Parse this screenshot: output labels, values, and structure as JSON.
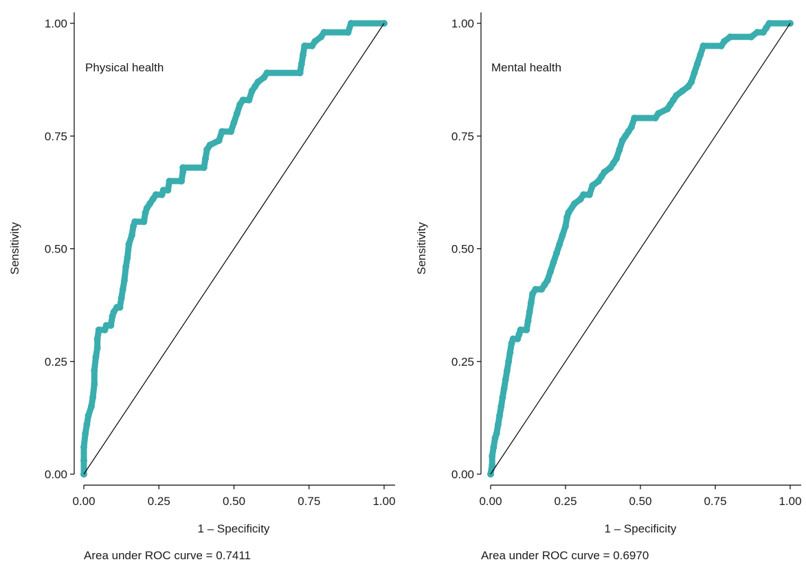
{
  "colors": {
    "curve": "#3AADAE",
    "reference": "#000000",
    "axis": "#000000"
  },
  "chart_data": [
    {
      "type": "line",
      "panel_label": "Physical health",
      "xlabel": "1 – Specificity",
      "ylabel": "Sensitivity",
      "auc_text": "Area under ROC curve = 0.7411",
      "xlim": [
        0,
        1
      ],
      "ylim": [
        0,
        1
      ],
      "x_ticks": [
        "0.00",
        "0.25",
        "0.50",
        "0.75",
        "1.00"
      ],
      "y_ticks": [
        "0.00",
        "0.25",
        "0.50",
        "0.75",
        "1.00"
      ],
      "reference_line": [
        [
          0,
          0
        ],
        [
          1,
          1
        ]
      ],
      "series": [
        {
          "points": [
            [
              0,
              0
            ],
            [
              0,
              0.03
            ],
            [
              0,
              0.06
            ],
            [
              0.005,
              0.09
            ],
            [
              0.01,
              0.11
            ],
            [
              0.015,
              0.13
            ],
            [
              0.025,
              0.15
            ],
            [
              0.03,
              0.17
            ],
            [
              0.035,
              0.2
            ],
            [
              0.035,
              0.23
            ],
            [
              0.04,
              0.26
            ],
            [
              0.045,
              0.28
            ],
            [
              0.045,
              0.3
            ],
            [
              0.05,
              0.32
            ],
            [
              0.07,
              0.32
            ],
            [
              0.075,
              0.33
            ],
            [
              0.09,
              0.33
            ],
            [
              0.095,
              0.35
            ],
            [
              0.1,
              0.36
            ],
            [
              0.11,
              0.37
            ],
            [
              0.12,
              0.37
            ],
            [
              0.125,
              0.39
            ],
            [
              0.13,
              0.41
            ],
            [
              0.135,
              0.43
            ],
            [
              0.14,
              0.46
            ],
            [
              0.145,
              0.48
            ],
            [
              0.15,
              0.51
            ],
            [
              0.16,
              0.53
            ],
            [
              0.165,
              0.55
            ],
            [
              0.17,
              0.56
            ],
            [
              0.2,
              0.56
            ],
            [
              0.205,
              0.58
            ],
            [
              0.21,
              0.59
            ],
            [
              0.22,
              0.6
            ],
            [
              0.23,
              0.61
            ],
            [
              0.24,
              0.62
            ],
            [
              0.26,
              0.62
            ],
            [
              0.265,
              0.63
            ],
            [
              0.28,
              0.63
            ],
            [
              0.285,
              0.65
            ],
            [
              0.325,
              0.65
            ],
            [
              0.33,
              0.67
            ],
            [
              0.33,
              0.68
            ],
            [
              0.4,
              0.68
            ],
            [
              0.405,
              0.7
            ],
            [
              0.41,
              0.72
            ],
            [
              0.42,
              0.73
            ],
            [
              0.45,
              0.74
            ],
            [
              0.46,
              0.76
            ],
            [
              0.49,
              0.76
            ],
            [
              0.5,
              0.78
            ],
            [
              0.51,
              0.8
            ],
            [
              0.52,
              0.82
            ],
            [
              0.53,
              0.83
            ],
            [
              0.55,
              0.83
            ],
            [
              0.56,
              0.85
            ],
            [
              0.57,
              0.86
            ],
            [
              0.58,
              0.87
            ],
            [
              0.6,
              0.88
            ],
            [
              0.61,
              0.89
            ],
            [
              0.72,
              0.89
            ],
            [
              0.725,
              0.91
            ],
            [
              0.73,
              0.93
            ],
            [
              0.735,
              0.95
            ],
            [
              0.76,
              0.95
            ],
            [
              0.77,
              0.96
            ],
            [
              0.79,
              0.97
            ],
            [
              0.8,
              0.98
            ],
            [
              0.88,
              0.98
            ],
            [
              0.89,
              1.0
            ],
            [
              1.0,
              1.0
            ]
          ]
        }
      ]
    },
    {
      "type": "line",
      "panel_label": "Mental health",
      "xlabel": "1 – Specificity",
      "ylabel": "Sensitivity",
      "auc_text": "Area under ROC curve = 0.6970",
      "xlim": [
        0,
        1
      ],
      "ylim": [
        0,
        1
      ],
      "x_ticks": [
        "0.00",
        "0.25",
        "0.50",
        "0.75",
        "1.00"
      ],
      "y_ticks": [
        "0.00",
        "0.25",
        "0.50",
        "0.75",
        "1.00"
      ],
      "reference_line": [
        [
          0,
          0
        ],
        [
          1,
          1
        ]
      ],
      "series": [
        {
          "points": [
            [
              0,
              0
            ],
            [
              0.005,
              0.02
            ],
            [
              0.005,
              0.04
            ],
            [
              0.01,
              0.06
            ],
            [
              0.015,
              0.08
            ],
            [
              0.02,
              0.09
            ],
            [
              0.025,
              0.11
            ],
            [
              0.03,
              0.13
            ],
            [
              0.035,
              0.15
            ],
            [
              0.04,
              0.17
            ],
            [
              0.045,
              0.19
            ],
            [
              0.05,
              0.21
            ],
            [
              0.055,
              0.23
            ],
            [
              0.06,
              0.25
            ],
            [
              0.065,
              0.27
            ],
            [
              0.07,
              0.29
            ],
            [
              0.075,
              0.3
            ],
            [
              0.09,
              0.3
            ],
            [
              0.095,
              0.31
            ],
            [
              0.1,
              0.32
            ],
            [
              0.12,
              0.32
            ],
            [
              0.125,
              0.34
            ],
            [
              0.13,
              0.36
            ],
            [
              0.135,
              0.38
            ],
            [
              0.14,
              0.4
            ],
            [
              0.15,
              0.41
            ],
            [
              0.17,
              0.41
            ],
            [
              0.18,
              0.42
            ],
            [
              0.19,
              0.43
            ],
            [
              0.2,
              0.45
            ],
            [
              0.21,
              0.47
            ],
            [
              0.22,
              0.49
            ],
            [
              0.23,
              0.51
            ],
            [
              0.24,
              0.53
            ],
            [
              0.25,
              0.55
            ],
            [
              0.255,
              0.57
            ],
            [
              0.26,
              0.58
            ],
            [
              0.28,
              0.6
            ],
            [
              0.3,
              0.61
            ],
            [
              0.31,
              0.62
            ],
            [
              0.33,
              0.62
            ],
            [
              0.34,
              0.64
            ],
            [
              0.36,
              0.65
            ],
            [
              0.37,
              0.66
            ],
            [
              0.38,
              0.67
            ],
            [
              0.4,
              0.68
            ],
            [
              0.41,
              0.69
            ],
            [
              0.42,
              0.7
            ],
            [
              0.43,
              0.72
            ],
            [
              0.44,
              0.74
            ],
            [
              0.45,
              0.75
            ],
            [
              0.46,
              0.76
            ],
            [
              0.47,
              0.77
            ],
            [
              0.48,
              0.79
            ],
            [
              0.55,
              0.79
            ],
            [
              0.56,
              0.8
            ],
            [
              0.59,
              0.81
            ],
            [
              0.6,
              0.82
            ],
            [
              0.61,
              0.83
            ],
            [
              0.62,
              0.84
            ],
            [
              0.64,
              0.85
            ],
            [
              0.66,
              0.86
            ],
            [
              0.67,
              0.87
            ],
            [
              0.68,
              0.89
            ],
            [
              0.69,
              0.91
            ],
            [
              0.7,
              0.93
            ],
            [
              0.71,
              0.95
            ],
            [
              0.77,
              0.95
            ],
            [
              0.78,
              0.96
            ],
            [
              0.8,
              0.97
            ],
            [
              0.87,
              0.97
            ],
            [
              0.89,
              0.98
            ],
            [
              0.91,
              0.98
            ],
            [
              0.92,
              0.99
            ],
            [
              0.93,
              1.0
            ],
            [
              1.0,
              1.0
            ]
          ]
        }
      ]
    }
  ]
}
